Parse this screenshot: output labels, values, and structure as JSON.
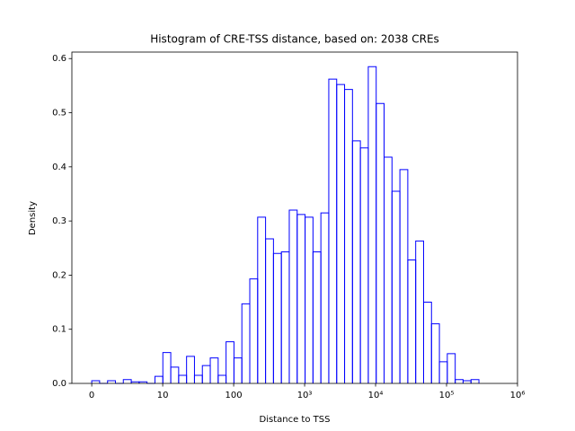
{
  "chart_data": {
    "type": "histogram",
    "title": "Histogram of CRE-TSS distance, based on: 2038 CREs",
    "x_label": "Distance to TSS",
    "y_label": "Density",
    "xscale": "symlog",
    "linthresh": 10,
    "bins": [
      0,
      1.11,
      2.23,
      3.34,
      4.45,
      5.57,
      6.68,
      7.79,
      8.91,
      10.05,
      12.99,
      16.78,
      21.69,
      28.03,
      36.22,
      46.8,
      60.47,
      78.15,
      101,
      130.5,
      168.7,
      217.9,
      281.6,
      363.9,
      470.3,
      607.7,
      785.3,
      1015,
      1312,
      1695,
      2190,
      2830,
      3657,
      4726,
      6107,
      7892,
      10200,
      13180,
      17030,
      22010,
      28440,
      36750,
      47490,
      61380,
      79320,
      102500,
      132500,
      171200,
      221200,
      285900
    ],
    "values": [
      0.005,
      0,
      0.005,
      0,
      0.007,
      0.003,
      0.003,
      0,
      0.013,
      0.057,
      0.03,
      0.015,
      0.05,
      0.015,
      0.033,
      0.047,
      0.015,
      0.077,
      0.047,
      0.147,
      0.193,
      0.307,
      0.267,
      0.24,
      0.243,
      0.32,
      0.312,
      0.307,
      0.243,
      0.315,
      0.562,
      0.552,
      0.543,
      0.448,
      0.435,
      0.585,
      0.517,
      0.418,
      0.355,
      0.395,
      0.228,
      0.263,
      0.15,
      0.11,
      0.04,
      0.055,
      0.007,
      0.005,
      0.007
    ],
    "color": "#0000ff",
    "xlim": [
      -2.8,
      1000000
    ],
    "xticks": [
      0,
      10,
      100,
      {
        "value": 1000,
        "label": "10³"
      },
      {
        "value": 10000,
        "label": "10⁴"
      },
      {
        "value": 100000,
        "label": "10⁵"
      },
      {
        "value": 1000000,
        "label": "10⁶"
      }
    ],
    "ylim": [
      0,
      0.612
    ],
    "yticks": [
      {
        "value": 0,
        "label": "0.0"
      },
      0.1,
      0.2,
      0.3,
      0.4,
      0.5,
      0.6
    ]
  }
}
